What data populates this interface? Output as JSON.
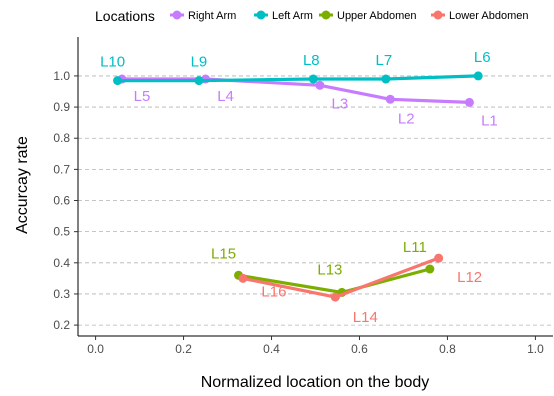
{
  "chart_data": {
    "type": "line",
    "xlabel": "Normalized location on the body",
    "ylabel": "Accurcay rate",
    "xlim": [
      -0.04,
      1.04
    ],
    "ylim": [
      0.165,
      1.125
    ],
    "x_ticks": [
      0.0,
      0.2,
      0.4,
      0.6,
      0.8,
      1.0
    ],
    "x_tick_labels": [
      "0.0",
      "0.2",
      "0.4",
      "0.6",
      "0.8",
      "1.0"
    ],
    "y_ticks": [
      0.2,
      0.3,
      0.4,
      0.5,
      0.6,
      0.7,
      0.8,
      0.9,
      1.0
    ],
    "y_tick_labels": [
      "0.2",
      "0.3",
      "0.4",
      "0.5",
      "0.6",
      "0.7",
      "0.8",
      "0.9",
      "1.0"
    ],
    "grid": "horizontal dashed",
    "legend": {
      "title": "Locations",
      "position": "top"
    },
    "series": [
      {
        "name": "Right Arm",
        "color": "#c77cff",
        "points": [
          {
            "label": "L5",
            "x": 0.06,
            "y": 0.99
          },
          {
            "label": "L4",
            "x": 0.25,
            "y": 0.99
          },
          {
            "label": "L3",
            "x": 0.51,
            "y": 0.97
          },
          {
            "label": "L2",
            "x": 0.67,
            "y": 0.925
          },
          {
            "label": "L1",
            "x": 0.85,
            "y": 0.915
          }
        ]
      },
      {
        "name": "Left Arm",
        "color": "#00bfc4",
        "points": [
          {
            "label": "L10",
            "x": 0.05,
            "y": 0.985
          },
          {
            "label": "L9",
            "x": 0.235,
            "y": 0.985
          },
          {
            "label": "L8",
            "x": 0.495,
            "y": 0.99
          },
          {
            "label": "L7",
            "x": 0.66,
            "y": 0.99
          },
          {
            "label": "L6",
            "x": 0.87,
            "y": 1.0
          }
        ]
      },
      {
        "name": "Upper Abdomen",
        "color": "#7cae00",
        "points": [
          {
            "label": "L15",
            "x": 0.325,
            "y": 0.36
          },
          {
            "label": "L13",
            "x": 0.56,
            "y": 0.305
          },
          {
            "label": "L11",
            "x": 0.76,
            "y": 0.38
          }
        ]
      },
      {
        "name": "Lower Abdomen",
        "color": "#f8766d",
        "points": [
          {
            "label": "L16",
            "x": 0.335,
            "y": 0.35
          },
          {
            "label": "L14",
            "x": 0.545,
            "y": 0.29
          },
          {
            "label": "L12",
            "x": 0.78,
            "y": 0.415
          }
        ]
      }
    ]
  }
}
